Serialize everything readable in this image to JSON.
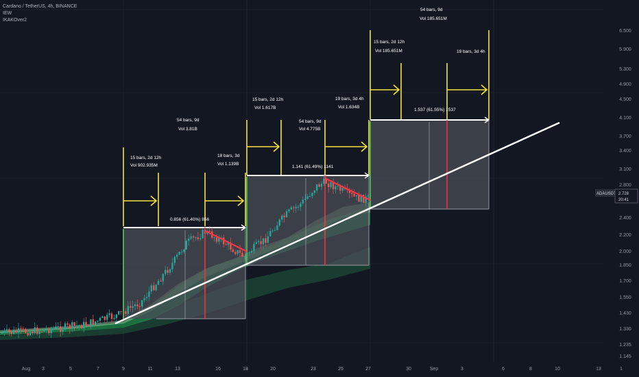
{
  "legend": {
    "symbol": "Cardano / TetherUS, 4h, BINANCE",
    "indicator1": "IEW",
    "indicator2": "IKAKOver2"
  },
  "price_axis": {
    "labels": [
      "6.500",
      "5.900",
      "5.300",
      "4.900",
      "4.500",
      "4.100",
      "3.700",
      "3.400",
      "3.100",
      "2.800",
      "2.400",
      "2.200",
      "2.000",
      "1.850",
      "1.700",
      "1.550",
      "1.430",
      "1.330",
      "1.235",
      "1.145"
    ],
    "current_symbol": "ADAUSDT",
    "current_price": "2.728",
    "countdown": "20:41"
  },
  "time_axis": {
    "labels": [
      "Aug",
      "3",
      "5",
      "7",
      "9",
      "11",
      "13",
      "16",
      "18",
      "20",
      "23",
      "25",
      "27",
      "30",
      "Sep",
      "3",
      "6",
      "8",
      "10",
      "13",
      "1"
    ]
  },
  "annotations": {
    "cycle1_entry_bars": "15 bars, 2d 12h",
    "cycle1_entry_vol": "Vol 902.935M",
    "cycle1_total_bars": "54 bars, 9d",
    "cycle1_total_vol": "Vol 3.81B",
    "cycle1_pullback_bars": "18 bars, 3d",
    "cycle1_pullback_vol": "Vol 1.139B",
    "cycle1_range": "0.856 (61.40%) 856",
    "cycle2_entry_bars": "15 bars, 2d 12h",
    "cycle2_entry_vol": "Vol 1.617B",
    "cycle2_total_bars": "54 bars, 9d",
    "cycle2_total_vol": "Vol 4.775B",
    "cycle2_pullback_bars": "19 bars, 3d 4h",
    "cycle2_pullback_vol": "Vol 1.634B",
    "cycle2_range": "1.141 (61.49%) 1141",
    "cycle3_entry_bars": "15 bars, 2d 12h",
    "cycle3_entry_vol": "Vol 185.651M",
    "cycle3_total_bars": "54 bars, 9d",
    "cycle3_total_vol": "Vol 185.651M",
    "cycle3_pullback_bars": "19 bars, 3d 4h",
    "cycle3_range": "1.537 (61.55%) 1537"
  },
  "colors": {
    "background": "#131722",
    "candle_up": "#26a69a",
    "candle_down": "#ef5350",
    "projection_box": "#4a4d56",
    "arrow": "#f5e33b",
    "trendline": "#ffffff",
    "pullback": "#f23645",
    "start_marker": "#4caf50"
  }
}
